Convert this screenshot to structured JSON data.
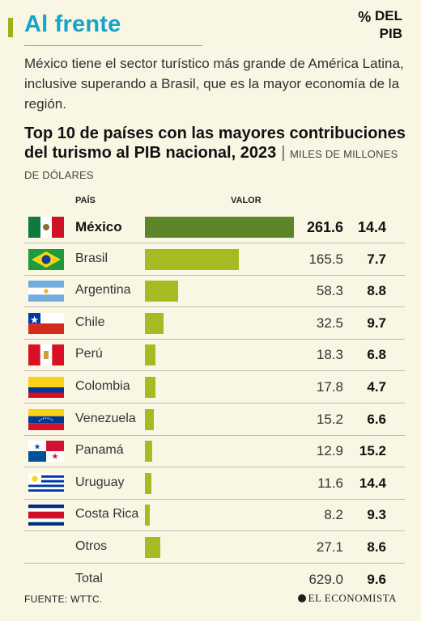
{
  "headline": "Al frente",
  "lede": "México tiene el sector turístico más grande de América Latina, inclusive superando a Brasil, que es la mayor economía de la región.",
  "chart_title": "Top 10 de países con las mayores contribuciones del turismo al PIB nacional, 2023",
  "units": "MILES DE MILLONES DE DÓLARES",
  "columns": {
    "country": "PAÍS",
    "value": "VALOR",
    "pib_pct": "%",
    "pib_label": "DEL PIB"
  },
  "chart_data": {
    "type": "bar",
    "title": "Top 10 de países con las mayores contribuciones del turismo al PIB nacional, 2023",
    "categories": [
      "México",
      "Brasil",
      "Argentina",
      "Chile",
      "Perú",
      "Colombia",
      "Venezuela",
      "Panamá",
      "Uruguay",
      "Costa Rica",
      "Otros"
    ],
    "series": [
      {
        "values": [
          261.6,
          165.5,
          58.3,
          32.5,
          18.3,
          17.8,
          15.2,
          12.9,
          11.6,
          8.2,
          27.1
        ]
      },
      {
        "values": [
          14.4,
          7.7,
          8.8,
          9.7,
          6.8,
          4.7,
          6.6,
          15.2,
          14.4,
          9.3,
          8.6
        ]
      }
    ],
    "highlight": "México",
    "colors": {
      "highlight": "#5d862b",
      "bar": "#a5bb22"
    }
  },
  "rows": [
    {
      "flag": "mexico-flag",
      "country": "México",
      "value": "261.6",
      "pib": "14.4"
    },
    {
      "flag": "brazil-flag",
      "country": "Brasil",
      "value": "165.5",
      "pib": "7.7"
    },
    {
      "flag": "argentina-flag",
      "country": "Argentina",
      "value": "58.3",
      "pib": "8.8"
    },
    {
      "flag": "chile-flag",
      "country": "Chile",
      "value": "32.5",
      "pib": "9.7"
    },
    {
      "flag": "peru-flag",
      "country": "Perú",
      "value": "18.3",
      "pib": "6.8"
    },
    {
      "flag": "colombia-flag",
      "country": "Colombia",
      "value": "17.8",
      "pib": "4.7"
    },
    {
      "flag": "venezuela-flag",
      "country": "Venezuela",
      "value": "15.2",
      "pib": "6.6"
    },
    {
      "flag": "panama-flag",
      "country": "Panamá",
      "value": "12.9",
      "pib": "15.2"
    },
    {
      "flag": "uruguay-flag",
      "country": "Uruguay",
      "value": "11.6",
      "pib": "14.4"
    },
    {
      "flag": "costa-rica-flag",
      "country": "Costa Rica",
      "value": "8.2",
      "pib": "9.3"
    },
    {
      "flag": "",
      "country": "Otros",
      "value": "27.1",
      "pib": "8.6"
    }
  ],
  "total": {
    "label": "Total",
    "value": "629.0",
    "pib": "9.6"
  },
  "source": "FUENTE: WTTC.",
  "brand": "EL ECONOMISTA"
}
